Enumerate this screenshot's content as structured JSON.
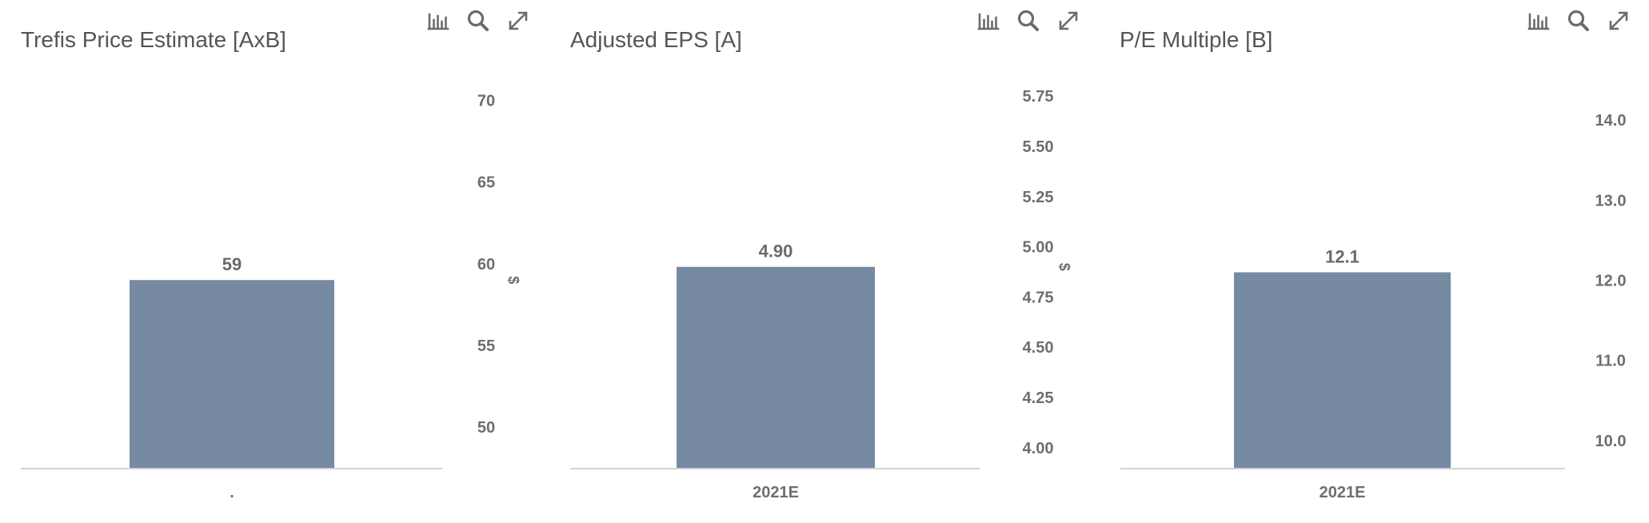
{
  "panels": [
    {
      "title": "Trefis Price Estimate [AxB]",
      "tools": [
        "bar-chart-icon",
        "search-icon",
        "expand-icon"
      ],
      "chart_data": {
        "type": "bar",
        "title": "Trefis Price Estimate [AxB]",
        "categories": [
          "."
        ],
        "values": [
          59
        ],
        "data_labels": [
          "59"
        ],
        "ylabel": "$",
        "ylim": [
          47.5,
          71.5
        ],
        "yticks": [
          50,
          55,
          60,
          65,
          70
        ],
        "ytick_labels": [
          "50",
          "55",
          "60",
          "65",
          "70"
        ],
        "y_axis_side": "right",
        "grid": false,
        "bar_color": "#768aa2"
      }
    },
    {
      "title": "Adjusted EPS [A]",
      "tools": [
        "bar-chart-icon",
        "search-icon",
        "expand-icon"
      ],
      "chart_data": {
        "type": "bar",
        "title": "Adjusted EPS [A]",
        "categories": [
          "2021E"
        ],
        "values": [
          4.9
        ],
        "data_labels": [
          "4.90"
        ],
        "ylabel": "$",
        "ylim": [
          3.9,
          5.85
        ],
        "yticks": [
          4.0,
          4.25,
          4.5,
          4.75,
          5.0,
          5.25,
          5.5,
          5.75
        ],
        "ytick_labels": [
          "4.00",
          "4.25",
          "4.50",
          "4.75",
          "5.00",
          "5.25",
          "5.50",
          "5.75"
        ],
        "y_axis_side": "right",
        "grid": false,
        "bar_color": "#768aa2"
      }
    },
    {
      "title": "P/E Multiple [B]",
      "tools": [
        "bar-chart-icon",
        "search-icon",
        "expand-icon"
      ],
      "chart_data": {
        "type": "bar",
        "title": "P/E Multiple [B]",
        "categories": [
          "2021E"
        ],
        "values": [
          12.1
        ],
        "data_labels": [
          "12.1"
        ],
        "ylabel": "",
        "ylim": [
          9.66,
          14.55
        ],
        "yticks": [
          10.0,
          11.0,
          12.0,
          13.0,
          14.0
        ],
        "ytick_labels": [
          "10.0",
          "11.0",
          "12.0",
          "13.0",
          "14.0"
        ],
        "y_axis_side": "right",
        "grid": false,
        "bar_color": "#768aa2"
      }
    }
  ]
}
